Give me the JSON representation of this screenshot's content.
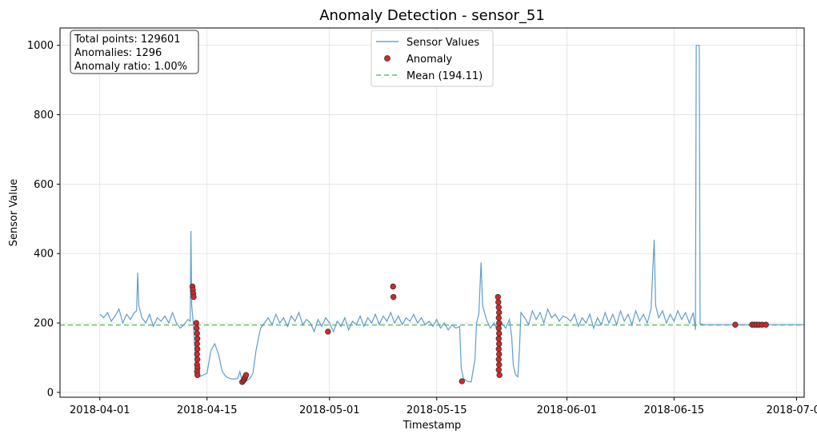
{
  "chart_data": {
    "type": "line",
    "title": "Anomaly Detection - sensor_51",
    "xlabel": "Timestamp",
    "ylabel": "Sensor Value",
    "xlim": [
      -5.2,
      92.0
    ],
    "ylim": [
      -14,
      1050
    ],
    "x_unit": "days since 2018-04-01",
    "x_ticks": [
      {
        "value": 0,
        "label": "2018-04-01"
      },
      {
        "value": 14,
        "label": "2018-04-15"
      },
      {
        "value": 30,
        "label": "2018-05-01"
      },
      {
        "value": 44,
        "label": "2018-05-15"
      },
      {
        "value": 61,
        "label": "2018-06-01"
      },
      {
        "value": 75,
        "label": "2018-06-15"
      },
      {
        "value": 91,
        "label": "2018-07-01"
      }
    ],
    "y_ticks": [
      0,
      200,
      400,
      600,
      800,
      1000
    ],
    "grid": true,
    "legend_position": "top-center",
    "mean": 194.11,
    "colors": {
      "line": "#4d94c6",
      "anomaly_fill": "#d62728",
      "anomaly_edge": "#333333",
      "mean_line": "#2ca02c"
    },
    "series": [
      {
        "name": "Sensor Values",
        "type": "line",
        "points": [
          [
            0,
            225
          ],
          [
            0.5,
            215
          ],
          [
            1,
            230
          ],
          [
            1.5,
            205
          ],
          [
            2,
            220
          ],
          [
            2.5,
            240
          ],
          [
            3,
            200
          ],
          [
            3.5,
            225
          ],
          [
            4,
            210
          ],
          [
            4.5,
            230
          ],
          [
            4.8,
            235
          ],
          [
            4.95,
            345
          ],
          [
            5.1,
            250
          ],
          [
            5.5,
            215
          ],
          [
            6,
            200
          ],
          [
            6.5,
            225
          ],
          [
            7,
            190
          ],
          [
            7.5,
            215
          ],
          [
            8,
            205
          ],
          [
            8.5,
            220
          ],
          [
            9,
            200
          ],
          [
            9.5,
            230
          ],
          [
            10,
            200
          ],
          [
            10.5,
            185
          ],
          [
            11,
            195
          ],
          [
            11.5,
            210
          ],
          [
            11.8,
            205
          ],
          [
            11.9,
            465
          ],
          [
            12.0,
            250
          ],
          [
            12.2,
            200
          ],
          [
            12.4,
            130
          ],
          [
            12.5,
            60
          ],
          [
            13,
            45
          ],
          [
            13.5,
            50
          ],
          [
            14,
            55
          ],
          [
            14.5,
            120
          ],
          [
            15,
            140
          ],
          [
            15.5,
            110
          ],
          [
            16,
            60
          ],
          [
            16.5,
            45
          ],
          [
            17,
            40
          ],
          [
            17.5,
            38
          ],
          [
            18,
            40
          ],
          [
            18.3,
            60
          ],
          [
            18.5,
            40
          ],
          [
            18.8,
            35
          ],
          [
            19.2,
            34
          ],
          [
            19.6,
            40
          ],
          [
            20,
            55
          ],
          [
            20.4,
            120
          ],
          [
            20.8,
            165
          ],
          [
            21,
            185
          ],
          [
            21.5,
            200
          ],
          [
            22,
            215
          ],
          [
            22.5,
            195
          ],
          [
            23,
            225
          ],
          [
            23.5,
            200
          ],
          [
            24,
            215
          ],
          [
            24.5,
            190
          ],
          [
            25,
            220
          ],
          [
            25.5,
            205
          ],
          [
            26,
            230
          ],
          [
            26.5,
            195
          ],
          [
            27,
            210
          ],
          [
            27.5,
            200
          ],
          [
            28,
            175
          ],
          [
            28.5,
            210
          ],
          [
            29,
            190
          ],
          [
            29.5,
            215
          ],
          [
            30,
            200
          ],
          [
            30.5,
            175
          ],
          [
            31,
            205
          ],
          [
            31.5,
            190
          ],
          [
            32,
            215
          ],
          [
            32.5,
            180
          ],
          [
            33,
            205
          ],
          [
            33.5,
            195
          ],
          [
            34,
            220
          ],
          [
            34.5,
            190
          ],
          [
            35,
            215
          ],
          [
            35.5,
            200
          ],
          [
            36,
            225
          ],
          [
            36.5,
            195
          ],
          [
            37,
            220
          ],
          [
            37.5,
            205
          ],
          [
            38,
            230
          ],
          [
            38.5,
            200
          ],
          [
            39,
            220
          ],
          [
            39.5,
            195
          ],
          [
            40,
            215
          ],
          [
            40.5,
            205
          ],
          [
            41,
            225
          ],
          [
            41.5,
            200
          ],
          [
            42,
            215
          ],
          [
            42.5,
            195
          ],
          [
            43,
            205
          ],
          [
            43.5,
            190
          ],
          [
            44,
            210
          ],
          [
            44.5,
            185
          ],
          [
            45,
            200
          ],
          [
            45.5,
            180
          ],
          [
            46,
            195
          ],
          [
            46.5,
            185
          ],
          [
            47,
            190
          ],
          [
            47.2,
            70
          ],
          [
            47.5,
            40
          ],
          [
            48,
            32
          ],
          [
            48.5,
            30
          ],
          [
            49,
            95
          ],
          [
            49.2,
            200
          ],
          [
            49.5,
            225
          ],
          [
            49.8,
            375
          ],
          [
            50,
            250
          ],
          [
            50.5,
            210
          ],
          [
            51,
            185
          ],
          [
            51.5,
            200
          ],
          [
            52,
            175
          ],
          [
            52.5,
            200
          ],
          [
            53,
            185
          ],
          [
            53.5,
            210
          ],
          [
            53.8,
            160
          ],
          [
            54,
            80
          ],
          [
            54.3,
            50
          ],
          [
            54.6,
            45
          ],
          [
            54.8,
            120
          ],
          [
            55,
            230
          ],
          [
            55.5,
            215
          ],
          [
            56,
            195
          ],
          [
            56.5,
            235
          ],
          [
            57,
            210
          ],
          [
            57.5,
            230
          ],
          [
            58,
            200
          ],
          [
            58.5,
            240
          ],
          [
            59,
            215
          ],
          [
            59.5,
            225
          ],
          [
            60,
            205
          ],
          [
            60.5,
            220
          ],
          [
            61,
            215
          ],
          [
            61.5,
            205
          ],
          [
            62,
            225
          ],
          [
            62.5,
            190
          ],
          [
            63,
            215
          ],
          [
            63.5,
            200
          ],
          [
            64,
            225
          ],
          [
            64.5,
            185
          ],
          [
            65,
            215
          ],
          [
            65.5,
            195
          ],
          [
            66,
            230
          ],
          [
            66.5,
            200
          ],
          [
            67,
            225
          ],
          [
            67.5,
            195
          ],
          [
            68,
            235
          ],
          [
            68.5,
            205
          ],
          [
            69,
            225
          ],
          [
            69.5,
            195
          ],
          [
            70,
            235
          ],
          [
            70.5,
            205
          ],
          [
            71,
            225
          ],
          [
            71.5,
            200
          ],
          [
            72,
            240
          ],
          [
            72.4,
            440
          ],
          [
            72.6,
            250
          ],
          [
            73,
            215
          ],
          [
            73.5,
            235
          ],
          [
            74,
            200
          ],
          [
            74.5,
            225
          ],
          [
            75,
            205
          ],
          [
            75.5,
            235
          ],
          [
            76,
            210
          ],
          [
            76.5,
            230
          ],
          [
            77,
            200
          ],
          [
            77.5,
            230
          ],
          [
            77.8,
            180
          ],
          [
            77.9,
            1000
          ],
          [
            78.3,
            1000
          ],
          [
            78.4,
            197
          ],
          [
            79,
            195
          ],
          [
            80,
            195
          ],
          [
            81,
            195
          ],
          [
            82,
            195
          ],
          [
            83,
            195
          ],
          [
            84,
            195
          ],
          [
            85,
            195
          ],
          [
            86,
            195
          ],
          [
            87,
            195
          ],
          [
            88,
            195
          ],
          [
            89,
            195
          ],
          [
            90,
            195
          ],
          [
            91,
            195
          ],
          [
            92,
            195
          ]
        ]
      },
      {
        "name": "Anomaly",
        "type": "scatter",
        "points": [
          [
            12.1,
            305
          ],
          [
            12.15,
            295
          ],
          [
            12.2,
            285
          ],
          [
            12.25,
            275
          ],
          [
            12.6,
            200
          ],
          [
            12.65,
            185
          ],
          [
            12.7,
            170
          ],
          [
            12.75,
            155
          ],
          [
            12.7,
            140
          ],
          [
            12.75,
            125
          ],
          [
            12.7,
            110
          ],
          [
            12.75,
            95
          ],
          [
            12.7,
            80
          ],
          [
            12.75,
            70
          ],
          [
            12.7,
            60
          ],
          [
            12.75,
            50
          ],
          [
            18.6,
            30
          ],
          [
            18.8,
            35
          ],
          [
            18.9,
            40
          ],
          [
            19.0,
            45
          ],
          [
            19.1,
            50
          ],
          [
            29.8,
            175
          ],
          [
            38.3,
            305
          ],
          [
            38.35,
            275
          ],
          [
            47.3,
            32
          ],
          [
            52.0,
            275
          ],
          [
            52.05,
            260
          ],
          [
            52.1,
            245
          ],
          [
            52.15,
            230
          ],
          [
            52.1,
            215
          ],
          [
            52.15,
            200
          ],
          [
            52.1,
            185
          ],
          [
            52.15,
            170
          ],
          [
            52.1,
            155
          ],
          [
            52.15,
            140
          ],
          [
            52.1,
            125
          ],
          [
            52.15,
            110
          ],
          [
            52.1,
            95
          ],
          [
            52.15,
            80
          ],
          [
            52.1,
            65
          ],
          [
            52.2,
            50
          ],
          [
            83.0,
            195
          ],
          [
            85.2,
            195
          ],
          [
            85.5,
            195
          ],
          [
            85.8,
            195
          ],
          [
            86.1,
            195
          ],
          [
            86.5,
            195
          ],
          [
            87.0,
            195
          ]
        ]
      },
      {
        "name": "Mean (194.11)",
        "type": "hline",
        "value": 194.11
      }
    ],
    "legend": [
      "Sensor Values",
      "Anomaly",
      "Mean (194.11)"
    ],
    "annotation": {
      "lines": [
        "Total points: 129601",
        "Anomalies: 1296",
        "Anomaly ratio: 1.00%"
      ],
      "position": "top-left"
    }
  }
}
